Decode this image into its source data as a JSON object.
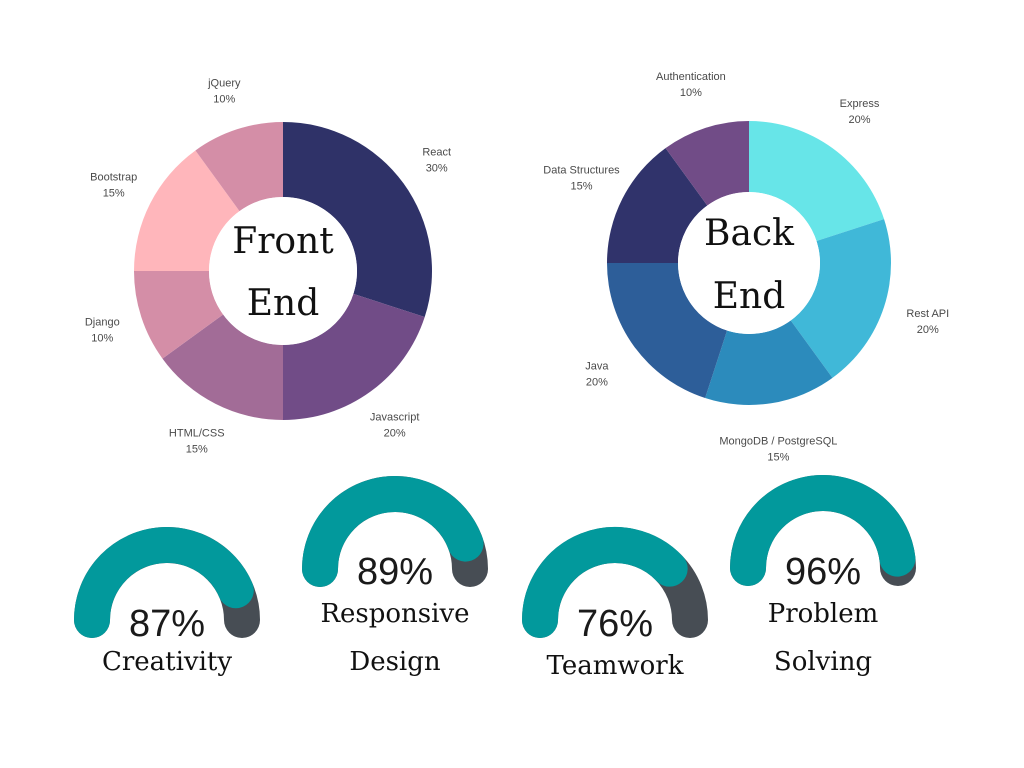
{
  "chart_data": [
    {
      "type": "pie",
      "title": "",
      "center_label": [
        "Front",
        "End"
      ],
      "slices": [
        {
          "label": "React",
          "value": 30,
          "value_label": "30%",
          "color": "#2f3268"
        },
        {
          "label": "Javascript",
          "value": 20,
          "value_label": "20%",
          "color": "#714c87"
        },
        {
          "label": "HTML/CSS",
          "value": 15,
          "value_label": "15%",
          "color": "#a26c97"
        },
        {
          "label": "Django",
          "value": 10,
          "value_label": "10%",
          "color": "#d48ea7"
        },
        {
          "label": "Bootstrap",
          "value": 15,
          "value_label": "15%",
          "color": "#ffb6bb"
        },
        {
          "label": "jQuery",
          "value": 10,
          "value_label": "10%",
          "color": "#d48ea7"
        }
      ]
    },
    {
      "type": "pie",
      "title": "",
      "center_label": [
        "Back",
        "End"
      ],
      "slices": [
        {
          "label": "Express",
          "value": 20,
          "value_label": "20%",
          "color": "#67e5e8"
        },
        {
          "label": "Rest API",
          "value": 20,
          "value_label": "20%",
          "color": "#40b8d8"
        },
        {
          "label": "MongoDB / PostgreSQL",
          "value": 15,
          "value_label": "15%",
          "color": "#2c8bbc"
        },
        {
          "label": "Java",
          "value": 20,
          "value_label": "20%",
          "color": "#2d5e99"
        },
        {
          "label": "Data Structures",
          "value": 15,
          "value_label": "15%",
          "color": "#30336b"
        },
        {
          "label": "Authentication",
          "value": 10,
          "value_label": "10%",
          "color": "#714c87"
        }
      ]
    }
  ],
  "gauges": [
    {
      "label_lines": [
        "Creativity"
      ],
      "percent": 87,
      "percent_label": "87%"
    },
    {
      "label_lines": [
        "Responsive",
        "Design"
      ],
      "percent": 89,
      "percent_label": "89%"
    },
    {
      "label_lines": [
        "Teamwork"
      ],
      "percent": 76,
      "percent_label": "76%"
    },
    {
      "label_lines": [
        "Problem",
        "Solving"
      ],
      "percent": 96,
      "percent_label": "96%"
    }
  ],
  "colors": {
    "gauge_fill": "#02999c",
    "gauge_track": "#474d54"
  }
}
